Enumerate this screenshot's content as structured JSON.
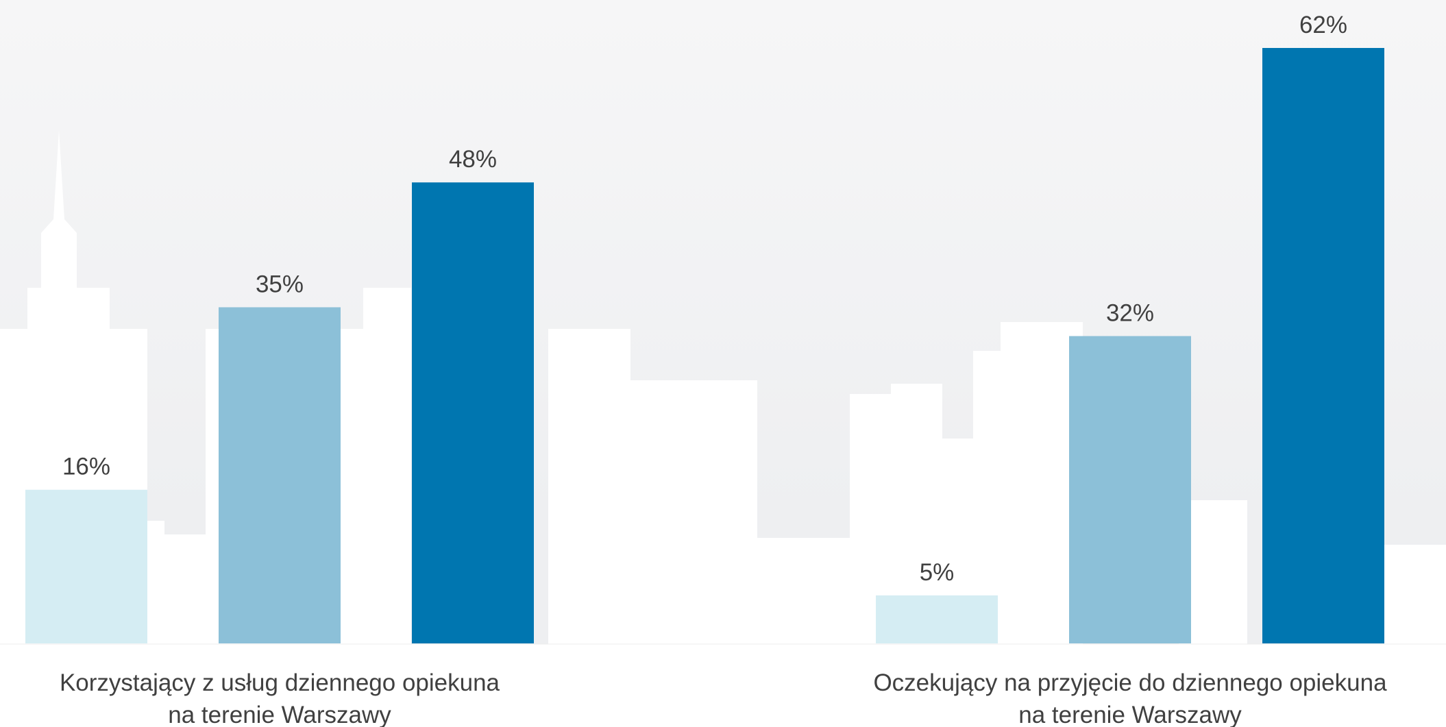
{
  "chart_data": {
    "type": "bar",
    "categories": [
      [
        "Korzystający z usług dziennego opiekuna",
        "na terenie Warszawy"
      ],
      [
        "Oczekujący na przyjęcie do dziennego opiekuna",
        "na terenie Warszawy"
      ]
    ],
    "series": [
      {
        "color": "#d5edf3",
        "values": [
          16,
          5
        ],
        "value_labels": [
          "16%",
          "5%"
        ]
      },
      {
        "color": "#8cc0d8",
        "values": [
          35,
          32
        ],
        "value_labels": [
          "35%",
          "32%"
        ]
      },
      {
        "color": "#0076b0",
        "values": [
          48,
          62
        ],
        "value_labels": [
          "48%",
          "62%"
        ]
      }
    ]
  }
}
